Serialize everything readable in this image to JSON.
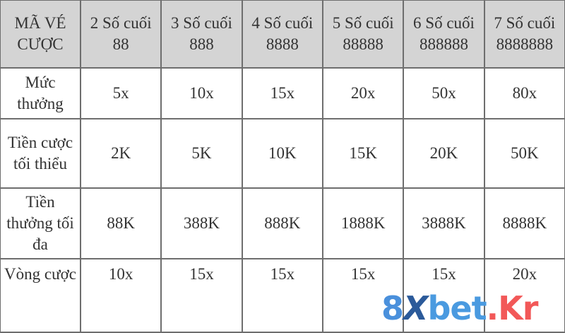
{
  "header": [
    "MÃ VÉ CƯỢC",
    "2 Số cuối 88",
    "3 Số cuối 888",
    "4 Số cuối 8888",
    "5 Số cuối 88888",
    "6 Số cuối 888888",
    "7 Số cuối 8888888"
  ],
  "rows": [
    [
      "Mức thưởng",
      "5x",
      "10x",
      "15x",
      "20x",
      "50x",
      "80x"
    ],
    [
      "Tiền cược tối thiểu",
      "2K",
      "5K",
      "10K",
      "15K",
      "20K",
      "50K"
    ],
    [
      "Tiền thưởng tối đa",
      "88K",
      "388K",
      "888K",
      "1888K",
      "3888K",
      "8888K"
    ],
    [
      "Vòng cược",
      "10x",
      "15x",
      "15x",
      "15x",
      "15x",
      "20x"
    ]
  ],
  "watermark": {
    "text_8": "8",
    "text_x": "X",
    "text_bet": "bet",
    "text_kr": ".Kr",
    "colors": {
      "blue": "#4a90dc",
      "dark_blue": "#2b5a9a",
      "red": "#f25858"
    }
  },
  "colors": {
    "header_bg": "#d4d4d4",
    "border": "#6e6e6e",
    "text": "#333333"
  }
}
